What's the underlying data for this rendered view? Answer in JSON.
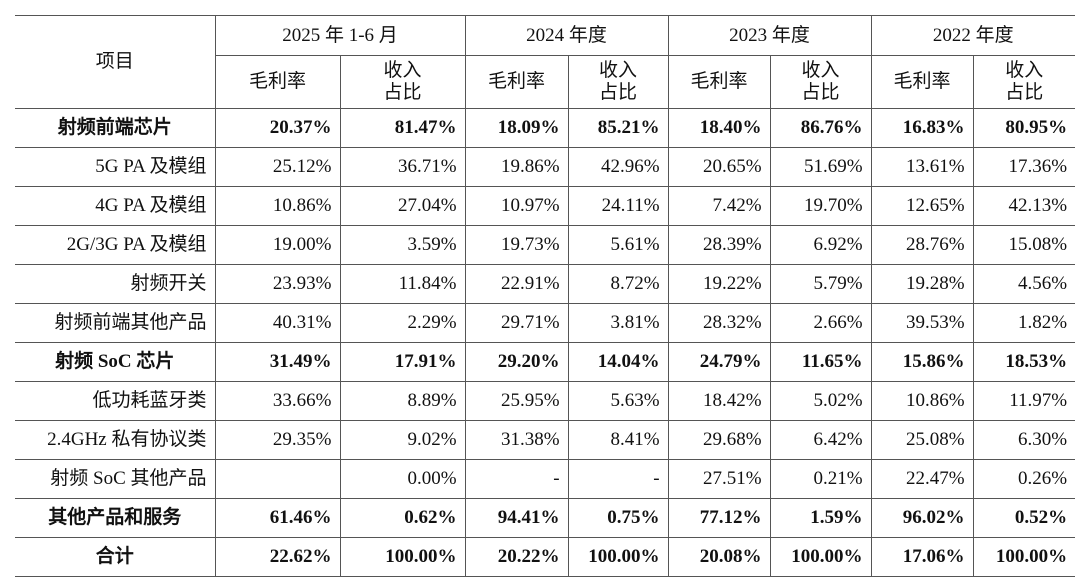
{
  "header": {
    "title": "项目",
    "periods": [
      "2025 年 1-6 月",
      "2024 年度",
      "2023 年度",
      "2022 年度"
    ],
    "sub": [
      "毛利率",
      "收入\n占比"
    ]
  },
  "table": {
    "rows": [
      {
        "label": "射频前端芯片",
        "bold": true,
        "cells": [
          "20.37%",
          "81.47%",
          "18.09%",
          "85.21%",
          "18.40%",
          "86.76%",
          "16.83%",
          "80.95%"
        ]
      },
      {
        "label": "5G PA 及模组",
        "bold": false,
        "cells": [
          "25.12%",
          "36.71%",
          "19.86%",
          "42.96%",
          "20.65%",
          "51.69%",
          "13.61%",
          "17.36%"
        ]
      },
      {
        "label": "4G PA 及模组",
        "bold": false,
        "cells": [
          "10.86%",
          "27.04%",
          "10.97%",
          "24.11%",
          "7.42%",
          "19.70%",
          "12.65%",
          "42.13%"
        ]
      },
      {
        "label": "2G/3G PA 及模组",
        "bold": false,
        "cells": [
          "19.00%",
          "3.59%",
          "19.73%",
          "5.61%",
          "28.39%",
          "6.92%",
          "28.76%",
          "15.08%"
        ]
      },
      {
        "label": "射频开关",
        "bold": false,
        "cells": [
          "23.93%",
          "11.84%",
          "22.91%",
          "8.72%",
          "19.22%",
          "5.79%",
          "19.28%",
          "4.56%"
        ]
      },
      {
        "label": "射频前端其他产品",
        "bold": false,
        "cells": [
          "40.31%",
          "2.29%",
          "29.71%",
          "3.81%",
          "28.32%",
          "2.66%",
          "39.53%",
          "1.82%"
        ]
      },
      {
        "label": "射频 SoC 芯片",
        "bold": true,
        "cells": [
          "31.49%",
          "17.91%",
          "29.20%",
          "14.04%",
          "24.79%",
          "11.65%",
          "15.86%",
          "18.53%"
        ]
      },
      {
        "label": "低功耗蓝牙类",
        "bold": false,
        "cells": [
          "33.66%",
          "8.89%",
          "25.95%",
          "5.63%",
          "18.42%",
          "5.02%",
          "10.86%",
          "11.97%"
        ]
      },
      {
        "label": "2.4GHz 私有协议类",
        "bold": false,
        "cells": [
          "29.35%",
          "9.02%",
          "31.38%",
          "8.41%",
          "29.68%",
          "6.42%",
          "25.08%",
          "6.30%"
        ]
      },
      {
        "label": "射频 SoC 其他产品",
        "bold": false,
        "cells": [
          "",
          "0.00%",
          "-",
          "-",
          "27.51%",
          "0.21%",
          "22.47%",
          "0.26%"
        ]
      },
      {
        "label": "其他产品和服务",
        "bold": true,
        "cells": [
          "61.46%",
          "0.62%",
          "94.41%",
          "0.75%",
          "77.12%",
          "1.59%",
          "96.02%",
          "0.52%"
        ]
      },
      {
        "label": "合计",
        "bold": true,
        "cells": [
          "22.62%",
          "100.00%",
          "20.22%",
          "100.00%",
          "20.08%",
          "100.00%",
          "17.06%",
          "100.00%"
        ]
      }
    ]
  }
}
